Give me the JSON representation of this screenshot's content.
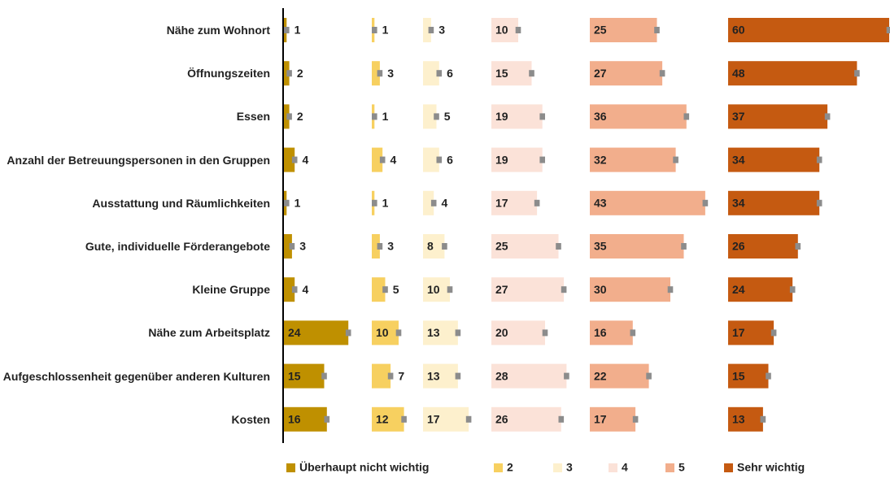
{
  "chart_data": {
    "type": "bar",
    "categories": [
      "Nähe zum Wohnort",
      "Öffnungszeiten",
      "Essen",
      "Anzahl der Betreuungspersonen in den Gruppen",
      "Ausstattung und Räumlichkeiten",
      "Gute, individuelle Förderangebote",
      "Kleine Gruppe",
      "Nähe zum Arbeitsplatz",
      "Aufgeschlossenheit gegenüber anderen Kulturen",
      "Kosten"
    ],
    "series": [
      {
        "name": "Überhaupt nicht wichtig",
        "color": "#bf9000",
        "values": [
          1,
          2,
          2,
          4,
          1,
          3,
          4,
          24,
          15,
          16
        ],
        "errors": [
          1,
          1,
          1,
          1,
          1,
          1,
          1,
          1,
          1,
          1
        ]
      },
      {
        "name": "2",
        "color": "#f7d060",
        "values": [
          1,
          3,
          1,
          4,
          1,
          3,
          5,
          10,
          7,
          12
        ],
        "errors": [
          1,
          1,
          1,
          1,
          1,
          1,
          1,
          1,
          1,
          1
        ]
      },
      {
        "name": "3",
        "color": "#fdf0cd",
        "values": [
          3,
          6,
          5,
          6,
          4,
          8,
          10,
          13,
          13,
          17
        ],
        "errors": [
          1,
          1,
          1,
          1,
          1,
          1,
          1,
          1,
          1,
          1
        ]
      },
      {
        "name": "4",
        "color": "#fbe2d8",
        "values": [
          10,
          15,
          19,
          19,
          17,
          25,
          27,
          20,
          28,
          26
        ],
        "errors": [
          1,
          1,
          1,
          1,
          1,
          1,
          1,
          1,
          1,
          1
        ]
      },
      {
        "name": "5",
        "color": "#f2ae8c",
        "values": [
          25,
          27,
          36,
          32,
          43,
          35,
          30,
          16,
          22,
          17
        ],
        "errors": [
          1,
          1,
          1,
          1,
          1,
          1,
          1,
          1,
          1,
          1
        ]
      },
      {
        "name": "Sehr wichtig",
        "color": "#c55a11",
        "values": [
          60,
          48,
          37,
          34,
          34,
          26,
          24,
          17,
          15,
          13
        ],
        "errors": [
          1,
          1,
          1,
          1,
          1,
          1,
          1,
          1,
          1,
          1
        ]
      }
    ]
  }
}
